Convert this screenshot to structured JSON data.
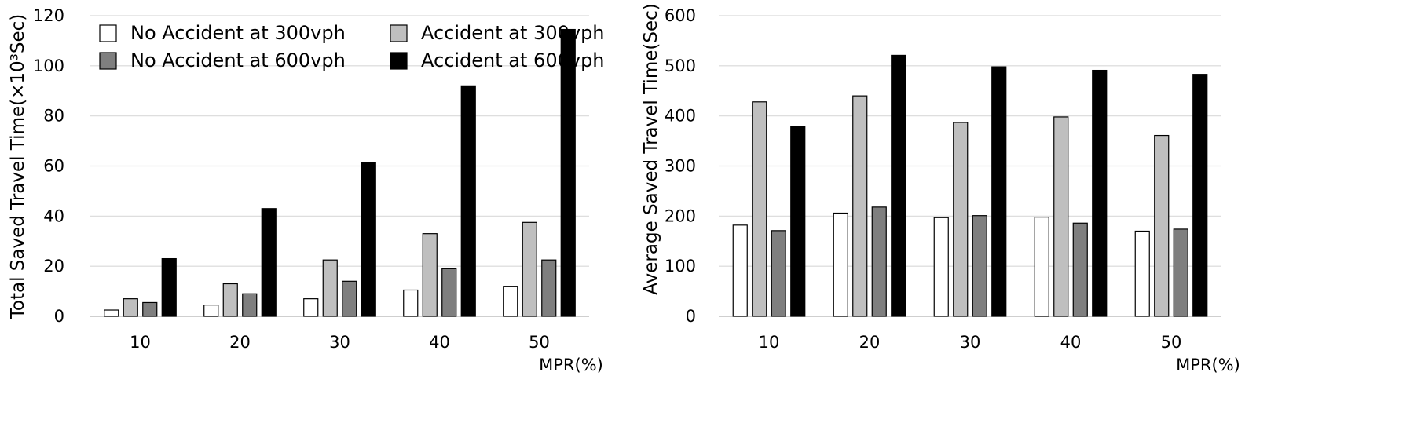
{
  "chart_data": [
    {
      "type": "bar",
      "title": "",
      "xlabel": "MPR(%)",
      "ylabel": "Total Saved Travel Time(×10³Sec)",
      "categories": [
        "10",
        "20",
        "30",
        "40",
        "50"
      ],
      "ylim": [
        0,
        120
      ],
      "yticks": [
        "0",
        "20",
        "40",
        "60",
        "80",
        "100",
        "120"
      ],
      "grid": true,
      "legend": "top-left",
      "series": [
        {
          "name": "No Accident at 300vph",
          "color": "#ffffff",
          "values": [
            2.5,
            4.5,
            7,
            10.5,
            12
          ]
        },
        {
          "name": "Accident at 300vph",
          "color": "#bfbfbf",
          "values": [
            7,
            13,
            22.5,
            33,
            37.5
          ]
        },
        {
          "name": "No Accident at 600vph",
          "color": "#7f7f7f",
          "values": [
            5.5,
            9,
            14,
            19,
            22.5
          ]
        },
        {
          "name": "Accident at 600vph",
          "color": "#000000",
          "values": [
            23,
            43,
            61.5,
            92,
            114.5
          ]
        }
      ]
    },
    {
      "type": "bar",
      "title": "",
      "xlabel": "MPR(%)",
      "ylabel": "Average Saved Travel Time(Sec)",
      "categories": [
        "10",
        "20",
        "30",
        "40",
        "50"
      ],
      "ylim": [
        0,
        600
      ],
      "yticks": [
        "0",
        "100",
        "200",
        "300",
        "400",
        "500",
        "600"
      ],
      "grid": true,
      "series": [
        {
          "name": "No Accident at 300vph",
          "color": "#ffffff",
          "values": [
            182,
            206,
            197,
            198,
            170
          ]
        },
        {
          "name": "Accident at 300vph",
          "color": "#bfbfbf",
          "values": [
            428,
            440,
            387,
            398,
            361
          ]
        },
        {
          "name": "No Accident at 600vph",
          "color": "#7f7f7f",
          "values": [
            171,
            218,
            201,
            186,
            174
          ]
        },
        {
          "name": "Accident at 600vph",
          "color": "#000000",
          "values": [
            379,
            521,
            498,
            491,
            483
          ]
        }
      ]
    }
  ],
  "legend": {
    "entries": [
      {
        "label": "No Accident at 300vph",
        "color": "#ffffff"
      },
      {
        "label": "Accident at 300vph",
        "color": "#bfbfbf"
      },
      {
        "label": "No Accident at 600vph",
        "color": "#7f7f7f"
      },
      {
        "label": "Accident at 600vph",
        "color": "#000000"
      }
    ]
  }
}
